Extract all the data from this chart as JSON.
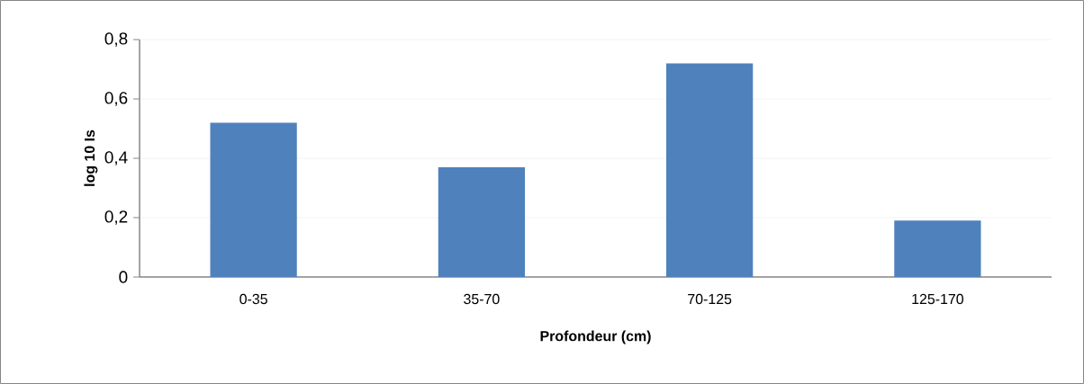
{
  "chart_data": {
    "type": "bar",
    "categories": [
      "0-35",
      "35-70",
      "70-125",
      "125-170"
    ],
    "values": [
      0.52,
      0.37,
      0.72,
      0.19
    ],
    "color": "#4f81bd",
    "xlabel": "Profondeur (cm)",
    "ylabel": "log 10 Is",
    "ylim": [
      0,
      0.8
    ],
    "yticks": [
      0,
      {
        "value": 0.2,
        "label": "0,2"
      },
      {
        "value": 0.4,
        "label": "0,4"
      },
      {
        "value": 0.6,
        "label": "0,6"
      },
      {
        "value": 0.8,
        "label": "0,8"
      }
    ],
    "grid": "y"
  }
}
